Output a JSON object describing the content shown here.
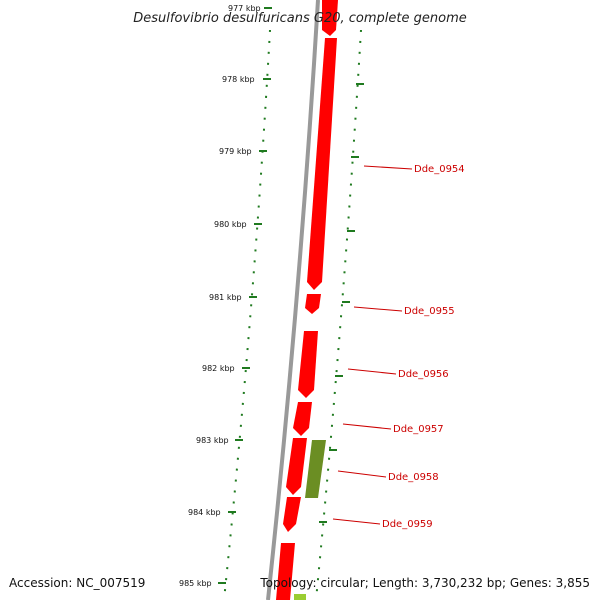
{
  "title": "Desulfovibrio desulfuricans G20, complete genome",
  "footer": {
    "accession": "Accession: NC_007519",
    "topology": "Topology: circular; Length: 3,730,232 bp; Genes: 3,855"
  },
  "colors": {
    "backbone": "#888888",
    "forward_gene": "#ff0000",
    "reverse_gene": "#6b8e23",
    "rna_gene": "#9acd32",
    "tick": "#1f7a1f",
    "label": "#cc0000"
  },
  "ticks": [
    "977 kbp",
    "978 kbp",
    "979 kbp",
    "980 kbp",
    "981 kbp",
    "982 kbp",
    "983 kbp",
    "984 kbp",
    "985 kbp"
  ],
  "genes": [
    {
      "label": "Dde_0954",
      "strand": "forward"
    },
    {
      "label": "Dde_0955",
      "strand": "forward"
    },
    {
      "label": "Dde_0956",
      "strand": "forward"
    },
    {
      "label": "Dde_0957",
      "strand": "forward"
    },
    {
      "label": "Dde_0958",
      "strand": "reverse"
    },
    {
      "label": "Dde_0959",
      "strand": "forward"
    }
  ]
}
